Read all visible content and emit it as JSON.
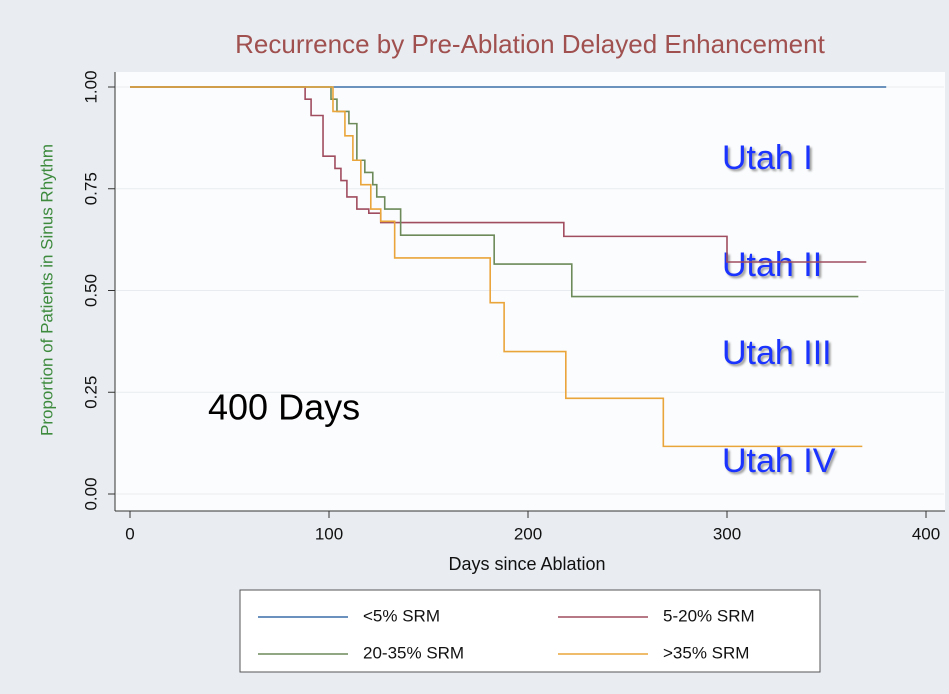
{
  "chart_data": {
    "type": "step",
    "title": "Recurrence by Pre-Ablation Delayed Enhancement",
    "x_label": "Days since Ablation",
    "y_label": "Proportion of Patients in Sinus Rhythm",
    "xlim": [
      0,
      400
    ],
    "xticks": [
      0,
      100,
      200,
      300,
      400
    ],
    "ylim": [
      0,
      1
    ],
    "yticks": [
      {
        "value": 0,
        "label": "0.00"
      },
      {
        "value": 0.25,
        "label": "0.25"
      },
      {
        "value": 0.5,
        "label": "0.50"
      },
      {
        "value": 0.75,
        "label": "0.75"
      },
      {
        "value": 1,
        "label": "1.00"
      }
    ],
    "grid": true,
    "series": [
      {
        "name": "<5% SRM",
        "color": "#3a6fa8",
        "x": [
          0,
          380
        ],
        "values": [
          1,
          1
        ]
      },
      {
        "name": "5-20% SRM",
        "color": "#a04d5f",
        "x": [
          0,
          88,
          91,
          97,
          103,
          106,
          109,
          114,
          120,
          126,
          218,
          300,
          370
        ],
        "values": [
          1,
          0.97,
          0.93,
          0.83,
          0.8,
          0.77,
          0.73,
          0.7,
          0.69,
          0.667,
          0.633,
          0.57,
          0.57
        ]
      },
      {
        "name": "20-35% SRM",
        "color": "#6d8a5a",
        "x": [
          0,
          101,
          104,
          110,
          114,
          118,
          122,
          124,
          128,
          136,
          183,
          222,
          366
        ],
        "values": [
          1,
          0.97,
          0.94,
          0.91,
          0.82,
          0.79,
          0.76,
          0.73,
          0.7,
          0.636,
          0.565,
          0.485,
          0.485
        ]
      },
      {
        "name": ">35% SRM",
        "color": "#eaa53a",
        "x": [
          0,
          102,
          108,
          112,
          116,
          121,
          126,
          133,
          181,
          188,
          219,
          268,
          368
        ],
        "values": [
          1,
          0.94,
          0.88,
          0.82,
          0.76,
          0.7,
          0.67,
          0.58,
          0.47,
          0.35,
          0.235,
          0.117,
          0.117
        ]
      }
    ],
    "annotations": [
      "Utah I",
      "Utah II",
      "Utah III",
      "Utah IV",
      "400 Days"
    ]
  }
}
